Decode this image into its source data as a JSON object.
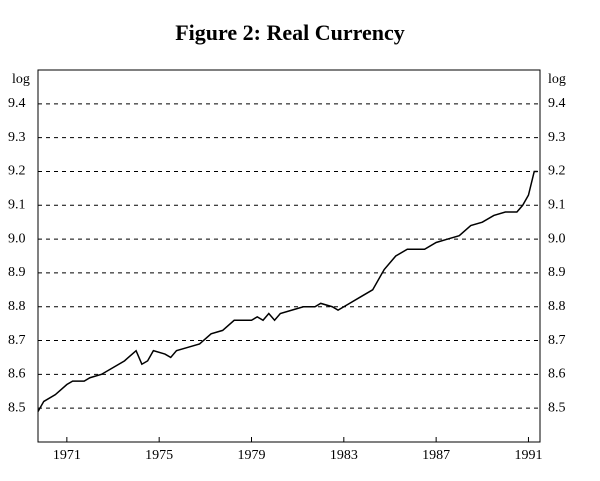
{
  "chart_data": {
    "type": "line",
    "title": "Figure 2: Real Currency",
    "y_label": "log",
    "y2_label": "log",
    "x": [
      1969.75,
      1970.0,
      1970.5,
      1971.0,
      1971.25,
      1971.75,
      1972.0,
      1972.5,
      1973.0,
      1973.5,
      1974.0,
      1974.25,
      1974.5,
      1974.75,
      1975.25,
      1975.5,
      1975.75,
      1976.25,
      1976.75,
      1977.25,
      1977.75,
      1978.25,
      1979.0,
      1979.25,
      1979.5,
      1979.75,
      1980.0,
      1980.25,
      1980.75,
      1981.25,
      1981.75,
      1982.0,
      1982.5,
      1982.75,
      1983.25,
      1983.75,
      1984.25,
      1984.75,
      1985.25,
      1985.75,
      1986.5,
      1987.0,
      1987.5,
      1988.0,
      1988.5,
      1989.0,
      1989.5,
      1990.0,
      1990.5,
      1990.75,
      1991.0,
      1991.25,
      1991.4
    ],
    "series": [
      {
        "name": "Real Currency",
        "color": "#000000",
        "values": [
          8.49,
          8.52,
          8.54,
          8.57,
          8.58,
          8.58,
          8.59,
          8.6,
          8.62,
          8.64,
          8.67,
          8.63,
          8.64,
          8.67,
          8.66,
          8.65,
          8.67,
          8.68,
          8.69,
          8.72,
          8.73,
          8.76,
          8.76,
          8.77,
          8.76,
          8.78,
          8.76,
          8.78,
          8.79,
          8.8,
          8.8,
          8.81,
          8.8,
          8.79,
          8.81,
          8.83,
          8.85,
          8.91,
          8.95,
          8.97,
          8.97,
          8.99,
          9.0,
          9.01,
          9.04,
          9.05,
          9.07,
          9.08,
          9.08,
          9.1,
          9.13,
          9.2,
          9.2
        ]
      }
    ],
    "xlim": [
      1969.75,
      1991.5
    ],
    "xticks": [
      1971,
      1975,
      1979,
      1983,
      1987,
      1991
    ],
    "ylim": [
      8.4,
      9.5
    ],
    "yticks": [
      8.5,
      8.6,
      8.7,
      8.8,
      8.9,
      {
        "value": 9,
        "label": "9.0"
      },
      9.1,
      9.2,
      9.3,
      9.4
    ],
    "grid": true,
    "grid_style": "dashed",
    "mirror_y_axis": true
  }
}
